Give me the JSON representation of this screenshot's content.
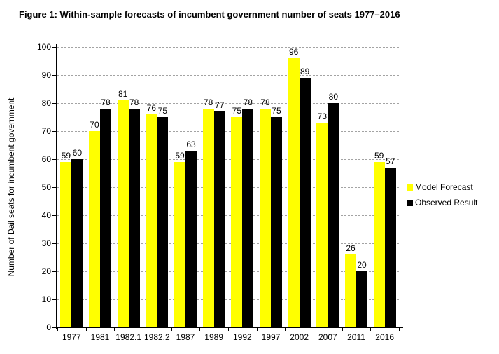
{
  "figure": {
    "title": "Figure 1: Within-sample forecasts of incumbent government number of seats 1977–2016"
  },
  "chart_data": {
    "type": "bar",
    "title": "Figure 1: Within-sample forecasts of incumbent government number of seats 1977–2016",
    "categories": [
      "1977",
      "1981",
      "1982.1",
      "1982.2",
      "1987",
      "1989",
      "1992",
      "1997",
      "2002",
      "2007",
      "2011",
      "2016"
    ],
    "series": [
      {
        "name": "Model Forecast",
        "color": "#ffff00",
        "values": [
          59,
          70,
          81,
          76,
          59,
          78,
          75,
          78,
          96,
          73,
          26,
          59
        ]
      },
      {
        "name": "Observed Result",
        "color": "#000000",
        "values": [
          60,
          78,
          78,
          75,
          63,
          77,
          78,
          75,
          89,
          80,
          20,
          57
        ]
      }
    ],
    "xlabel": "",
    "ylabel": "Number of Dail seats for incumbent government",
    "ylim": [
      0,
      100
    ],
    "yticks": [
      0,
      10,
      20,
      30,
      40,
      50,
      60,
      70,
      80,
      90,
      100
    ],
    "grid": "horizontal-dashed",
    "legend_position": "right-middle",
    "bar_value_labels": true,
    "colors": {
      "grid": "#a3a3a3",
      "axis": "#000000",
      "background": "#ffffff"
    }
  }
}
